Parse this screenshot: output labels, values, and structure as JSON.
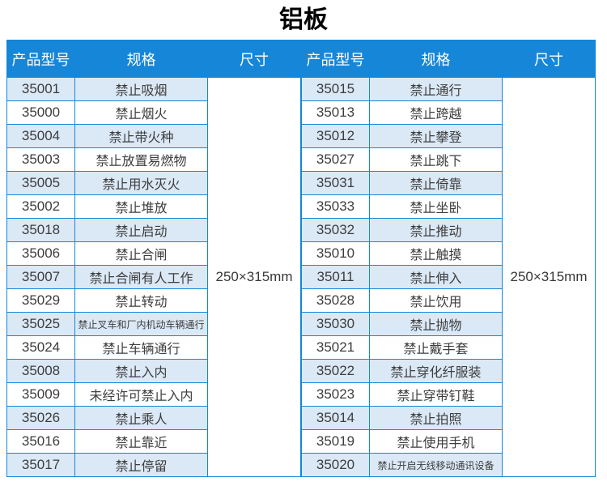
{
  "title": "铝板",
  "size_value": "250×315mm",
  "columns": [
    "产品型号",
    "规格",
    "尺寸"
  ],
  "left_table": {
    "rows": [
      {
        "model": "35001",
        "spec": "禁止吸烟"
      },
      {
        "model": "35000",
        "spec": "禁止烟火"
      },
      {
        "model": "35004",
        "spec": "禁止带火种"
      },
      {
        "model": "35003",
        "spec": "禁止放置易燃物"
      },
      {
        "model": "35005",
        "spec": "禁止用水灭火"
      },
      {
        "model": "35002",
        "spec": "禁止堆放"
      },
      {
        "model": "35018",
        "spec": "禁止启动"
      },
      {
        "model": "35006",
        "spec": "禁止合闸"
      },
      {
        "model": "35007",
        "spec": "禁止合闸有人工作"
      },
      {
        "model": "35029",
        "spec": "禁止转动"
      },
      {
        "model": "35025",
        "spec": "禁止叉车和厂内机动车辆通行"
      },
      {
        "model": "35024",
        "spec": "禁止车辆通行"
      },
      {
        "model": "35008",
        "spec": "禁止入内"
      },
      {
        "model": "35009",
        "spec": "未经许可禁止入内"
      },
      {
        "model": "35026",
        "spec": "禁止乘人"
      },
      {
        "model": "35016",
        "spec": "禁止靠近"
      },
      {
        "model": "35017",
        "spec": "禁止停留"
      }
    ]
  },
  "right_table": {
    "rows": [
      {
        "model": "35015",
        "spec": "禁止通行"
      },
      {
        "model": "35013",
        "spec": "禁止跨越"
      },
      {
        "model": "35012",
        "spec": "禁止攀登"
      },
      {
        "model": "35027",
        "spec": "禁止跳下"
      },
      {
        "model": "35031",
        "spec": "禁止倚靠"
      },
      {
        "model": "35033",
        "spec": "禁止坐卧"
      },
      {
        "model": "35032",
        "spec": "禁止推动"
      },
      {
        "model": "35010",
        "spec": "禁止触摸"
      },
      {
        "model": "35011",
        "spec": "禁止伸入"
      },
      {
        "model": "35028",
        "spec": "禁止饮用"
      },
      {
        "model": "35030",
        "spec": "禁止抛物"
      },
      {
        "model": "35021",
        "spec": "禁止戴手套"
      },
      {
        "model": "35022",
        "spec": "禁止穿化纤服装"
      },
      {
        "model": "35023",
        "spec": "禁止穿带钉鞋"
      },
      {
        "model": "35014",
        "spec": "禁止拍照"
      },
      {
        "model": "35019",
        "spec": "禁止使用手机"
      },
      {
        "model": "35020",
        "spec": "禁止开启无线移动通讯设备"
      }
    ]
  },
  "colors": {
    "header_bg": "#1686d8",
    "border": "#1686d8",
    "row_alt": "#dbe8f5",
    "row_bg": "#ffffff",
    "header_text": "#ffffff",
    "cell_text": "#3d3d3d"
  }
}
